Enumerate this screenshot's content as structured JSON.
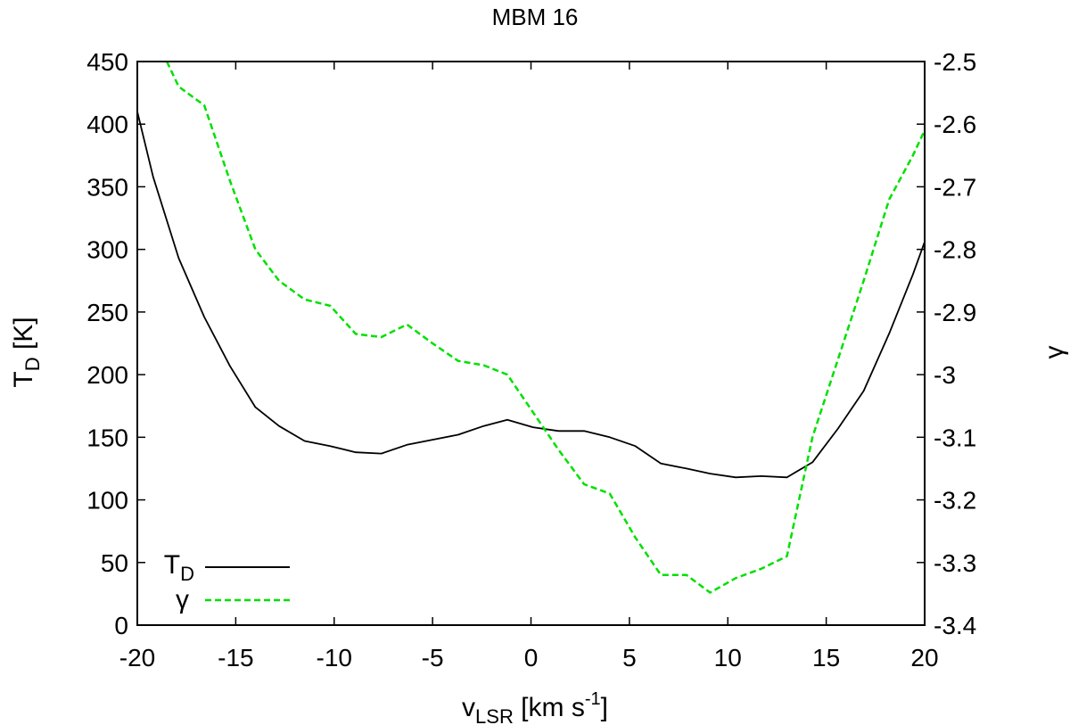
{
  "chart_data": {
    "type": "line",
    "title": "MBM 16",
    "xlabel": {
      "main": "v",
      "sub": "LSR",
      "pre_sup": " [km s",
      "sup": "-1",
      "post": "]"
    },
    "ylabel_left": {
      "main": "T",
      "sub": "D",
      "post": " [K]"
    },
    "ylabel_right": "γ",
    "xlim": [
      -20,
      20
    ],
    "ylim_left": [
      0,
      450
    ],
    "ylim_right": [
      -3.4,
      -2.5
    ],
    "x_ticks": [
      -20,
      -15,
      -10,
      -5,
      0,
      5,
      10,
      15,
      20
    ],
    "x_tick_labels": [
      "-20",
      "-15",
      "-10",
      "-5",
      "0",
      "5",
      "10",
      "15",
      "20"
    ],
    "y_left_ticks": [
      0,
      50,
      100,
      150,
      200,
      250,
      300,
      350,
      400,
      450
    ],
    "y_left_tick_labels": [
      "0",
      "50",
      "100",
      "150",
      "200",
      "250",
      "300",
      "350",
      "400",
      "450"
    ],
    "y_right_ticks": [
      -3.4,
      -3.3,
      -3.2,
      -3.1,
      -3.0,
      -2.9,
      -2.8,
      -2.7,
      -2.6,
      -2.5
    ],
    "y_right_tick_labels": [
      "-3.4",
      "-3.3",
      "-3.2",
      "-3.1",
      "-3",
      "-2.9",
      "-2.8",
      "-2.7",
      "-2.6",
      "-2.5"
    ],
    "grid": false,
    "legend_position": "bottom-left",
    "series": [
      {
        "name": "T_D",
        "legend_main": "T",
        "legend_sub": "D",
        "axis": "left",
        "color": "#000000",
        "dash": "solid",
        "x": [
          -20,
          -19.2,
          -17.9,
          -16.6,
          -15.3,
          -14.0,
          -12.8,
          -11.5,
          -10.2,
          -8.9,
          -7.6,
          -6.3,
          -5.0,
          -3.7,
          -2.4,
          -1.2,
          0.1,
          1.4,
          2.7,
          4.0,
          5.3,
          6.6,
          7.9,
          9.1,
          10.4,
          11.7,
          13.0,
          14.3,
          15.6,
          16.9,
          18.2,
          19.4,
          20.0
        ],
        "y": [
          410,
          358,
          293,
          246,
          207,
          174,
          159,
          147,
          143,
          138,
          137,
          144,
          148,
          152,
          159,
          164,
          158,
          155,
          155,
          150,
          143,
          129,
          125,
          121,
          118,
          119,
          118,
          130,
          157,
          187,
          233,
          280,
          306
        ]
      },
      {
        "name": "γ",
        "legend_main": "γ",
        "axis": "right",
        "color": "#00e000",
        "dash": "dashed",
        "x": [
          -18.5,
          -17.9,
          -16.6,
          -15.3,
          -14.0,
          -12.8,
          -11.5,
          -10.2,
          -8.9,
          -7.6,
          -6.3,
          -5.0,
          -3.7,
          -2.4,
          -1.2,
          0.1,
          1.4,
          2.7,
          4.0,
          5.3,
          6.6,
          7.9,
          9.1,
          10.4,
          11.7,
          13.0,
          14.3,
          15.6,
          16.9,
          18.2,
          19.4,
          20.0
        ],
        "y": [
          -2.5,
          -2.54,
          -2.57,
          -2.69,
          -2.8,
          -2.85,
          -2.88,
          -2.89,
          -2.935,
          -2.94,
          -2.92,
          -2.95,
          -2.978,
          -2.985,
          -3.0,
          -3.06,
          -3.12,
          -3.175,
          -3.19,
          -3.26,
          -3.32,
          -3.32,
          -3.348,
          -3.325,
          -3.31,
          -3.29,
          -3.1,
          -2.975,
          -2.85,
          -2.72,
          -2.65,
          -2.61
        ]
      }
    ]
  }
}
